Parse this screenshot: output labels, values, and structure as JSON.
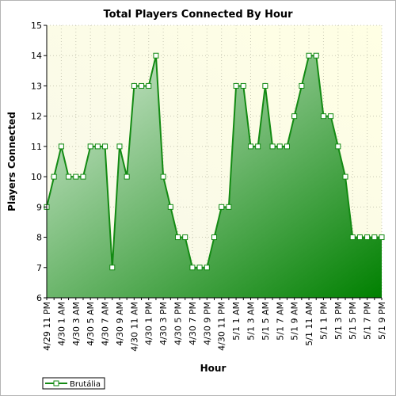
{
  "chart_data": {
    "type": "area",
    "title": "Total Players Connected By Hour",
    "xlabel": "Hour",
    "ylabel": "Players Connected",
    "ylim": [
      6,
      15
    ],
    "yticks": [
      6,
      7,
      8,
      9,
      10,
      11,
      12,
      13,
      14,
      15
    ],
    "grid": true,
    "legend_position": "bottom-left",
    "colors": {
      "series": "#138a13",
      "plot_bg": "#ffffe4",
      "fill_light": "#d8ecd8",
      "fill_dark": "#008000"
    },
    "x_tick_labels": [
      "4/29 11 PM",
      "4/30 1 AM",
      "4/30 3 AM",
      "4/30 5 AM",
      "4/30 7 AM",
      "4/30 9 AM",
      "4/30 11 AM",
      "4/30 1 PM",
      "4/30 3 PM",
      "4/30 5 PM",
      "4/30 7 PM",
      "4/30 9 PM",
      "4/30 11 PM",
      "5/1 1 AM",
      "5/1 3 AM",
      "5/1 5 AM",
      "5/1 7 AM",
      "5/1 9 AM",
      "5/1 11 AM",
      "5/1 1 PM",
      "5/1 3 PM",
      "5/1 5 PM",
      "5/1 7 PM",
      "5/1 9 PM"
    ],
    "series": [
      {
        "name": "Brutália",
        "values": [
          9,
          10,
          11,
          10,
          10,
          10,
          11,
          11,
          11,
          7,
          11,
          10,
          13,
          13,
          13,
          14,
          10,
          9,
          8,
          8,
          7,
          7,
          7,
          8,
          9,
          9,
          13,
          13,
          11,
          11,
          13,
          11,
          11,
          11,
          12,
          13,
          14,
          14,
          12,
          12,
          11,
          10,
          8,
          8,
          8,
          8,
          8
        ]
      }
    ]
  }
}
